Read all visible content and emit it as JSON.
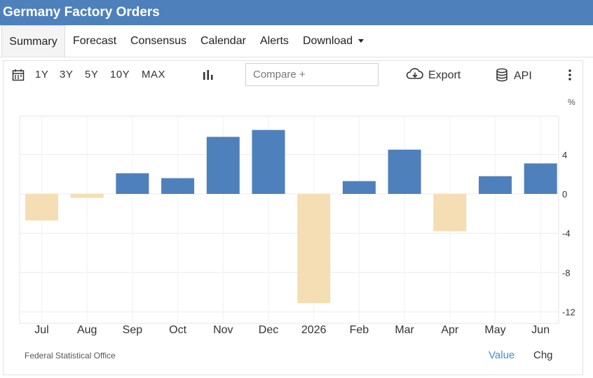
{
  "title": "Germany Factory Orders",
  "tabs": [
    {
      "label": "Summary",
      "active": true
    },
    {
      "label": "Forecast"
    },
    {
      "label": "Consensus"
    },
    {
      "label": "Calendar"
    },
    {
      "label": "Alerts"
    },
    {
      "label": "Download"
    }
  ],
  "toolbar": {
    "ranges": [
      "1Y",
      "3Y",
      "5Y",
      "10Y",
      "MAX"
    ],
    "compare_placeholder": "Compare +",
    "export_label": "Export",
    "api_label": "API"
  },
  "colors": {
    "header": "#4e80bb",
    "positive": "#4e80bb",
    "negative": "#f5deb3",
    "link": "#3a8fd6"
  },
  "chart_data": {
    "type": "bar",
    "unit": "%",
    "categories": [
      "Jul",
      "Aug",
      "Sep",
      "Oct",
      "Nov",
      "Dec",
      "2026",
      "Feb",
      "Mar",
      "Apr",
      "May",
      "Jun"
    ],
    "values": [
      -2.7,
      -0.4,
      2.1,
      1.6,
      5.8,
      6.5,
      -11.1,
      1.3,
      4.5,
      -3.8,
      1.8,
      3.1
    ],
    "yticks": [
      4,
      0,
      -4,
      -8,
      -12
    ],
    "ylim": [
      -13,
      8
    ],
    "grid": true,
    "y_axis_side": "right"
  },
  "footer": {
    "source": "Federal Statistical Office",
    "value_label": "Value",
    "chg_label": "Chg"
  }
}
